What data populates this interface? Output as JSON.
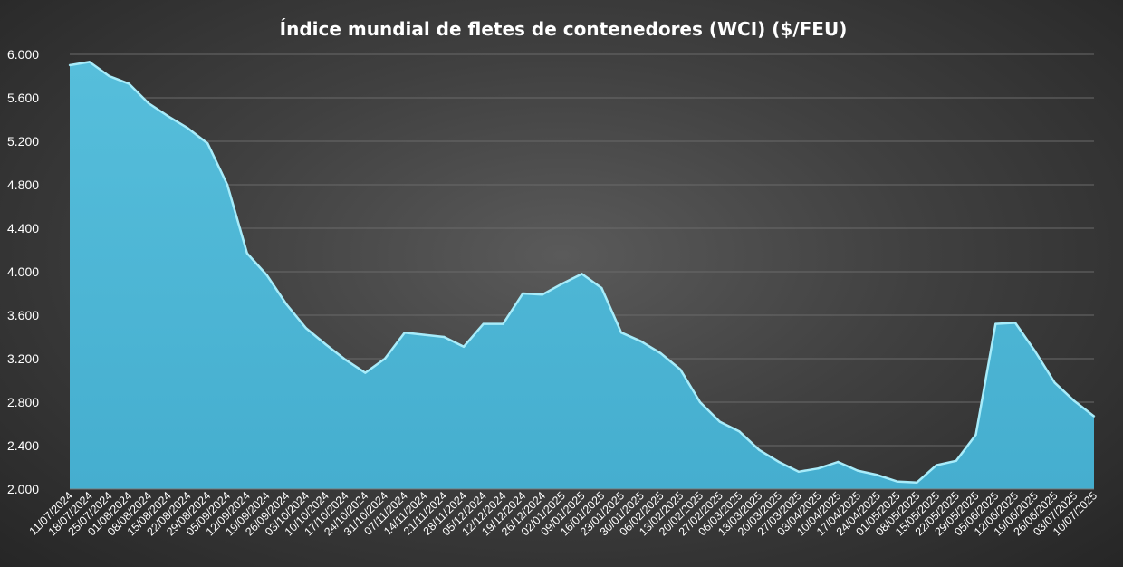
{
  "chart_data": {
    "type": "area",
    "title": "Índice mundial de fletes de contenedores (WCI) ($/FEU)",
    "xlabel": "",
    "ylabel": "",
    "ylim": [
      2000,
      6000
    ],
    "yticks": [
      {
        "value": 2000,
        "label": "2.000"
      },
      {
        "value": 2400,
        "label": "2.400"
      },
      {
        "value": 2800,
        "label": "2.800"
      },
      {
        "value": 3200,
        "label": "3.200"
      },
      {
        "value": 3600,
        "label": "3.600"
      },
      {
        "value": 4000,
        "label": "4.000"
      },
      {
        "value": 4400,
        "label": "4.400"
      },
      {
        "value": 4800,
        "label": "4.800"
      },
      {
        "value": 5200,
        "label": "5.200"
      },
      {
        "value": 5600,
        "label": "5.600"
      },
      {
        "value": 6000,
        "label": "6.000"
      }
    ],
    "grid": true,
    "legend": "none",
    "colors": {
      "fill": "#4fb8d6",
      "line": "#a8ecfa",
      "grid": "#6a6a6a",
      "text": "#ffffff"
    },
    "categories": [
      "11/07/2024",
      "18/07/2024",
      "25/07/2024",
      "01/08/2024",
      "08/08/2024",
      "15/08/2024",
      "22/08/2024",
      "29/08/2024",
      "05/09/2024",
      "12/09/2024",
      "19/09/2024",
      "26/09/2024",
      "03/10/2024",
      "10/10/2024",
      "17/10/2024",
      "24/10/2024",
      "31/10/2024",
      "07/11/2024",
      "14/11/2024",
      "21/11/2024",
      "28/11/2024",
      "05/12/2024",
      "12/12/2024",
      "19/12/2024",
      "26/12/2024",
      "02/01/2025",
      "09/01/2025",
      "16/01/2025",
      "23/01/2025",
      "30/01/2025",
      "06/02/2025",
      "13/02/2025",
      "20/02/2025",
      "27/02/2025",
      "06/03/2025",
      "13/03/2025",
      "20/03/2025",
      "27/03/2025",
      "03/04/2025",
      "10/04/2025",
      "17/04/2025",
      "24/04/2025",
      "01/05/2025",
      "08/05/2025",
      "15/05/2025",
      "22/05/2025",
      "29/05/2025",
      "05/06/2025",
      "12/06/2025",
      "19/06/2025",
      "26/06/2025",
      "03/07/2025",
      "10/07/2025"
    ],
    "series": [
      {
        "values": [
          5900,
          5930,
          5800,
          5730,
          5550,
          5430,
          5320,
          5180,
          4800,
          4170,
          3970,
          3700,
          3480,
          3330,
          3190,
          3070,
          3200,
          3440,
          3420,
          3400,
          3310,
          3520,
          3520,
          3800,
          3790,
          3890,
          3980,
          3850,
          3440,
          3360,
          3250,
          3100,
          2800,
          2620,
          2530,
          2360,
          2250,
          2160,
          2190,
          2250,
          2170,
          2130,
          2070,
          2060,
          2220,
          2260,
          2500,
          3520,
          3530,
          3270,
          2980,
          2810,
          2670
        ]
      }
    ]
  }
}
